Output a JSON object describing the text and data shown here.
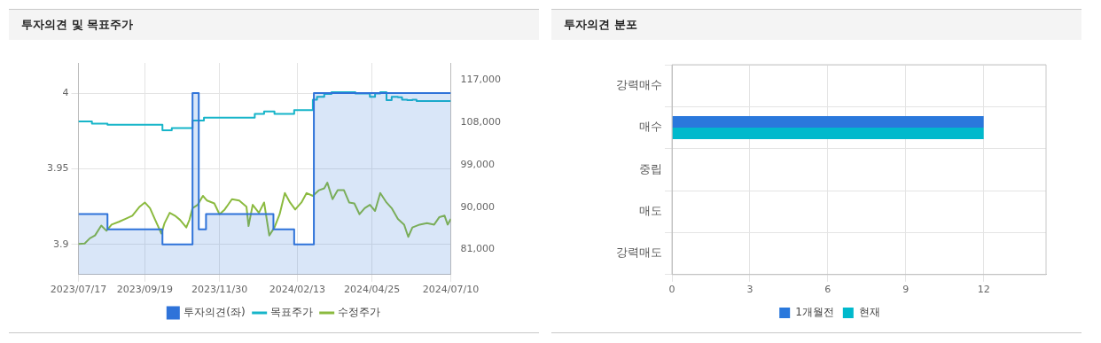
{
  "chart_data": [
    {
      "type": "line",
      "title": "투자의견 및 목표주가",
      "xlim": [
        "2023-07-17",
        "2024-07-10"
      ],
      "xticks": [
        {
          "value": "2023-07-17",
          "label": "2023/07/17"
        },
        {
          "value": "2023-09-19",
          "label": "2023/09/19"
        },
        {
          "value": "2023-11-30",
          "label": "2023/11/30"
        },
        {
          "value": "2024-02-13",
          "label": "2024/02/13"
        },
        {
          "value": "2024-04-25",
          "label": "2024/04/25"
        },
        {
          "value": "2024-07-10",
          "label": "2024/07/10"
        }
      ],
      "ylim": [
        3.88,
        4.02
      ],
      "yticks": [
        3.9,
        3.95,
        4
      ],
      "y2lim": [
        75700,
        120600
      ],
      "y2ticks": [
        {
          "value": 81000,
          "label": "81,000"
        },
        {
          "value": 90000,
          "label": "90,000"
        },
        {
          "value": 99000,
          "label": "99,000"
        },
        {
          "value": 108000,
          "label": "108,000"
        },
        {
          "value": 117000,
          "label": "117,000"
        }
      ],
      "grid": true,
      "legend": "bottom",
      "marker": "none",
      "series": [
        {
          "name": "투자의견(좌)",
          "type": "area",
          "color": "#2f73d9",
          "x": [
            "2023-07-17",
            "2023-08-14",
            "2023-08-14",
            "2023-10-06",
            "2023-10-06",
            "2023-11-04",
            "2023-11-04",
            "2023-11-10",
            "2023-11-10",
            "2023-11-17",
            "2023-11-17",
            "2024-01-21",
            "2024-01-21",
            "2024-02-10",
            "2024-02-10",
            "2024-02-29",
            "2024-02-29",
            "2024-07-10"
          ],
          "values": [
            3.92,
            3.92,
            3.91,
            3.91,
            3.9,
            3.9,
            4,
            4,
            3.91,
            3.91,
            3.92,
            3.92,
            3.91,
            3.91,
            3.9,
            3.9,
            4,
            4
          ]
        },
        {
          "name": "목표주가",
          "type": "step",
          "axis": "y2",
          "color": "#17b5c9",
          "x": [
            "2023-07-17",
            "2023-07-30",
            "2023-08-14",
            "2023-10-06",
            "2023-10-15",
            "2023-11-04",
            "2023-11-08",
            "2023-11-15",
            "2023-11-18",
            "2024-01-03",
            "2024-01-12",
            "2024-01-22",
            "2024-02-10",
            "2024-02-28",
            "2024-03-03",
            "2024-03-10",
            "2024-03-17",
            "2024-04-09",
            "2024-04-23",
            "2024-04-28",
            "2024-05-03",
            "2024-05-09",
            "2024-05-14",
            "2024-05-20",
            "2024-05-24",
            "2024-05-29",
            "2024-06-03",
            "2024-06-07",
            "2024-07-10"
          ],
          "values": [
            108200,
            107700,
            107500,
            106300,
            106800,
            108400,
            108400,
            109000,
            109000,
            109800,
            110300,
            109800,
            110600,
            112800,
            113400,
            114000,
            114400,
            114100,
            113400,
            114100,
            114400,
            112700,
            113400,
            113300,
            112800,
            112700,
            112800,
            112500,
            112500
          ]
        },
        {
          "name": "수정주가",
          "type": "line",
          "axis": "y2",
          "color": "#8bba3f",
          "x": [
            "2023-07-17",
            "2023-07-23",
            "2023-07-28",
            "2023-08-02",
            "2023-08-08",
            "2023-08-13",
            "2023-08-18",
            "2023-08-25",
            "2023-08-31",
            "2023-09-07",
            "2023-09-14",
            "2023-09-19",
            "2023-09-24",
            "2023-09-29",
            "2023-10-05",
            "2023-10-08",
            "2023-10-13",
            "2023-10-18",
            "2023-10-23",
            "2023-10-29",
            "2023-11-01",
            "2023-11-04",
            "2023-11-09",
            "2023-11-14",
            "2023-11-18",
            "2023-11-25",
            "2023-11-30",
            "2023-12-05",
            "2023-12-12",
            "2023-12-19",
            "2023-12-26",
            "2023-12-28",
            "2024-01-01",
            "2024-01-07",
            "2024-01-12",
            "2024-01-17",
            "2024-01-22",
            "2024-01-27",
            "2024-02-01",
            "2024-02-06",
            "2024-02-11",
            "2024-02-17",
            "2024-02-22",
            "2024-02-28",
            "2024-03-05",
            "2024-03-10",
            "2024-03-13",
            "2024-03-18",
            "2024-03-23",
            "2024-03-29",
            "2024-04-03",
            "2024-04-08",
            "2024-04-13",
            "2024-04-18",
            "2024-04-23",
            "2024-04-28",
            "2024-05-03",
            "2024-05-09",
            "2024-05-14",
            "2024-05-20",
            "2024-05-26",
            "2024-05-30",
            "2024-06-03",
            "2024-06-10",
            "2024-06-17",
            "2024-06-24",
            "2024-06-29",
            "2024-07-04",
            "2024-07-07",
            "2024-07-10"
          ],
          "values": [
            82200,
            82300,
            83400,
            84000,
            86100,
            85000,
            86300,
            86900,
            87500,
            88200,
            90100,
            91000,
            89800,
            87300,
            84400,
            86600,
            88800,
            88200,
            87300,
            85700,
            87300,
            89800,
            90500,
            92400,
            91400,
            90800,
            88500,
            89500,
            91700,
            91400,
            90100,
            86000,
            90500,
            88800,
            91000,
            84000,
            85700,
            88500,
            93000,
            91000,
            89500,
            91000,
            93000,
            92400,
            93600,
            94000,
            95200,
            91700,
            93600,
            93600,
            91000,
            90800,
            88500,
            89800,
            90500,
            89200,
            93000,
            91000,
            89800,
            87500,
            86300,
            83700,
            85700,
            86300,
            86600,
            86300,
            87900,
            88200,
            86300,
            87500
          ]
        }
      ]
    },
    {
      "type": "bar",
      "title": "투자의견 분포",
      "orientation": "horizontal",
      "categories": [
        "강력매수",
        "매수",
        "중립",
        "매도",
        "강력매도"
      ],
      "xlim": [
        0,
        14.4
      ],
      "xticks": [
        0,
        3,
        6,
        9,
        12
      ],
      "grid": true,
      "legend": "bottom",
      "series": [
        {
          "name": "1개월전",
          "color": "#2a78dc",
          "values": [
            0,
            12,
            0,
            0,
            0
          ]
        },
        {
          "name": "현재",
          "color": "#00b9cc",
          "values": [
            0,
            12,
            0,
            0,
            0
          ]
        }
      ]
    }
  ]
}
